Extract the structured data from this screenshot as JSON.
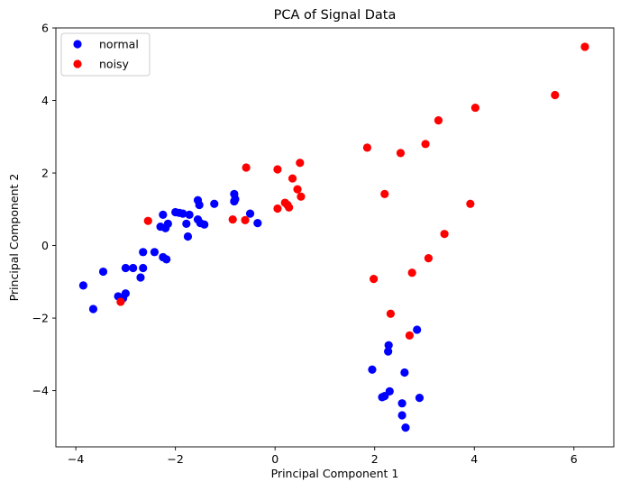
{
  "chart_data": {
    "type": "scatter",
    "title": "PCA of Signal Data",
    "xlabel": "Principal Component 1",
    "ylabel": "Principal Component 2",
    "xlim": [
      -4.4,
      6.8
    ],
    "ylim": [
      -5.55,
      6.0
    ],
    "xticks": [
      -4,
      -2,
      0,
      2,
      4,
      6
    ],
    "yticks": [
      -4,
      -2,
      0,
      2,
      4,
      6
    ],
    "grid": false,
    "legend_position": "top-left",
    "series": [
      {
        "name": "normal",
        "color": "#0000ff",
        "points": [
          [
            -3.85,
            -1.1
          ],
          [
            -3.65,
            -1.75
          ],
          [
            -3.45,
            -0.72
          ],
          [
            -3.15,
            -1.4
          ],
          [
            -3.05,
            -1.45
          ],
          [
            -3.0,
            -1.32
          ],
          [
            -3.0,
            -0.62
          ],
          [
            -2.85,
            -0.62
          ],
          [
            -2.7,
            -0.88
          ],
          [
            -2.65,
            -0.62
          ],
          [
            -2.65,
            -0.18
          ],
          [
            -2.42,
            -0.18
          ],
          [
            -2.3,
            0.52
          ],
          [
            -2.25,
            -0.32
          ],
          [
            -2.25,
            0.85
          ],
          [
            -2.2,
            0.48
          ],
          [
            -2.18,
            -0.38
          ],
          [
            -2.15,
            0.6
          ],
          [
            -2.0,
            0.92
          ],
          [
            -1.92,
            0.9
          ],
          [
            -1.85,
            0.88
          ],
          [
            -1.78,
            0.6
          ],
          [
            -1.75,
            0.25
          ],
          [
            -1.72,
            0.85
          ],
          [
            -1.55,
            0.72
          ],
          [
            -1.55,
            1.25
          ],
          [
            -1.52,
            1.12
          ],
          [
            -1.5,
            0.62
          ],
          [
            -1.42,
            0.58
          ],
          [
            -1.22,
            1.15
          ],
          [
            -0.82,
            1.22
          ],
          [
            -0.82,
            1.42
          ],
          [
            -0.8,
            1.28
          ],
          [
            -0.5,
            0.88
          ],
          [
            -0.35,
            0.62
          ],
          [
            1.95,
            -3.42
          ],
          [
            2.15,
            -4.18
          ],
          [
            2.2,
            -4.15
          ],
          [
            2.3,
            -4.02
          ],
          [
            2.27,
            -2.92
          ],
          [
            2.28,
            -2.75
          ],
          [
            2.55,
            -4.35
          ],
          [
            2.55,
            -4.68
          ],
          [
            2.62,
            -5.02
          ],
          [
            2.6,
            -3.5
          ],
          [
            2.85,
            -2.32
          ],
          [
            2.9,
            -4.2
          ]
        ]
      },
      {
        "name": "noisy",
        "color": "#ff0000",
        "points": [
          [
            -3.1,
            -1.55
          ],
          [
            -2.55,
            0.68
          ],
          [
            -0.85,
            0.72
          ],
          [
            -0.6,
            0.7
          ],
          [
            -0.58,
            2.15
          ],
          [
            0.05,
            2.1
          ],
          [
            0.05,
            1.02
          ],
          [
            0.2,
            1.18
          ],
          [
            0.25,
            1.12
          ],
          [
            0.28,
            1.05
          ],
          [
            0.35,
            1.85
          ],
          [
            0.45,
            1.55
          ],
          [
            0.5,
            2.28
          ],
          [
            0.52,
            1.35
          ],
          [
            1.85,
            2.7
          ],
          [
            1.98,
            -0.92
          ],
          [
            2.2,
            1.42
          ],
          [
            2.32,
            -1.88
          ],
          [
            2.52,
            2.55
          ],
          [
            2.7,
            -2.48
          ],
          [
            2.75,
            -0.75
          ],
          [
            3.02,
            2.8
          ],
          [
            3.08,
            -0.35
          ],
          [
            3.28,
            3.45
          ],
          [
            3.4,
            0.32
          ],
          [
            3.92,
            1.15
          ],
          [
            4.02,
            3.8
          ],
          [
            5.62,
            4.15
          ],
          [
            6.22,
            5.48
          ]
        ]
      }
    ]
  }
}
